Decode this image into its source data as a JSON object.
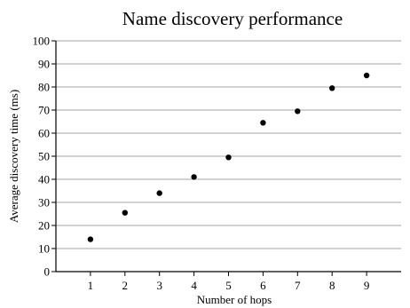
{
  "chart_data": {
    "type": "scatter",
    "title": "Name discovery performance",
    "xlabel": "Number of hops",
    "ylabel": "Average discovery time (ms)",
    "x": [
      1,
      2,
      3,
      4,
      5,
      6,
      7,
      8,
      9
    ],
    "series": [
      {
        "values": [
          14,
          25.5,
          34,
          41,
          49.5,
          64.5,
          69.5,
          79.5,
          85
        ]
      }
    ],
    "xlim": [
      0,
      10
    ],
    "ylim": [
      0,
      100
    ],
    "xticks": [
      1,
      2,
      3,
      4,
      5,
      6,
      7,
      8,
      9
    ],
    "yticks": [
      0,
      10,
      20,
      30,
      40,
      50,
      60,
      70,
      80,
      90,
      100
    ],
    "grid": "horizontal",
    "legend": "none",
    "colors": {
      "marker": "#000000",
      "gridline": "#a6a6a6",
      "axis": "#000000"
    }
  }
}
